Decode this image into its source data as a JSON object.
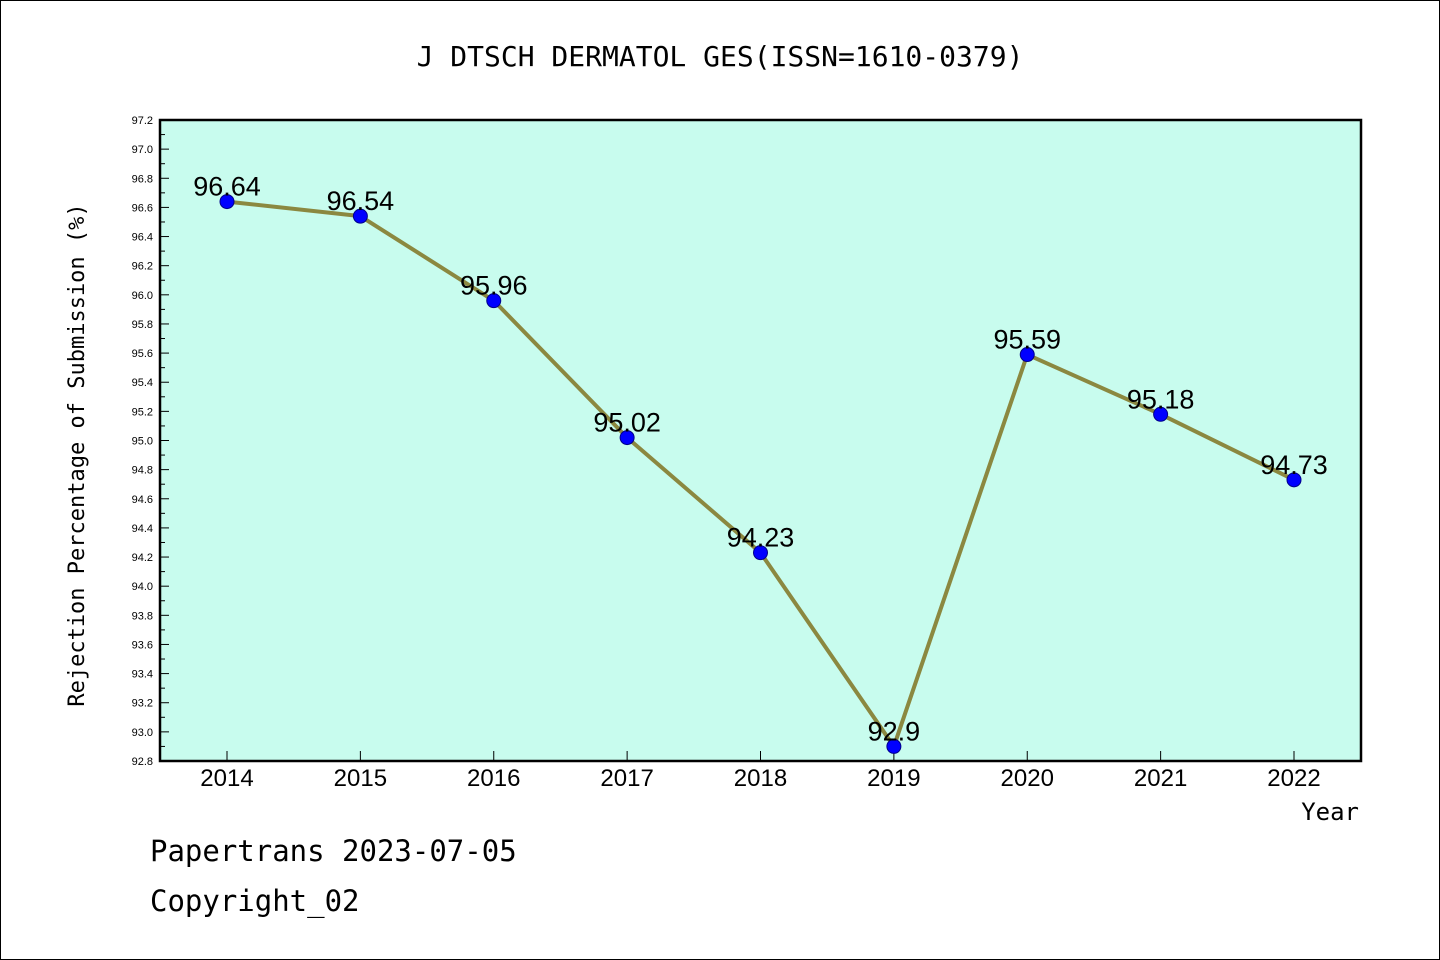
{
  "chart_data": {
    "type": "line",
    "title": "J DTSCH DERMATOL GES(ISSN=1610-0379)",
    "xlabel": "Year",
    "ylabel": "Rejection Percentage of Submission (%)",
    "categories": [
      "2014",
      "2015",
      "2016",
      "2017",
      "2018",
      "2019",
      "2020",
      "2021",
      "2022"
    ],
    "values": [
      96.64,
      96.54,
      95.96,
      95.02,
      94.23,
      92.9,
      95.59,
      95.18,
      94.73
    ],
    "data_labels": [
      "96.64",
      "96.54",
      "95.96",
      "95.02",
      "94.23",
      "92.9",
      "95.59",
      "95.18",
      "94.73"
    ],
    "ylim": [
      92.8,
      97.2
    ],
    "yticks": [
      "92.8",
      "93.0",
      "93.2",
      "93.4",
      "93.6",
      "93.8",
      "94.0",
      "94.2",
      "94.4",
      "94.6",
      "94.8",
      "95.0",
      "95.2",
      "95.4",
      "95.6",
      "95.8",
      "96.0",
      "96.2",
      "96.4",
      "96.6",
      "96.8",
      "97.0",
      "97.2"
    ],
    "grid": false,
    "colors": {
      "plot_background": "#c8fcee",
      "line": "#8b8840",
      "marker": "#0000ff"
    }
  },
  "footer": {
    "line1": "Papertrans 2023-07-05",
    "line2": "Copyright_02"
  }
}
